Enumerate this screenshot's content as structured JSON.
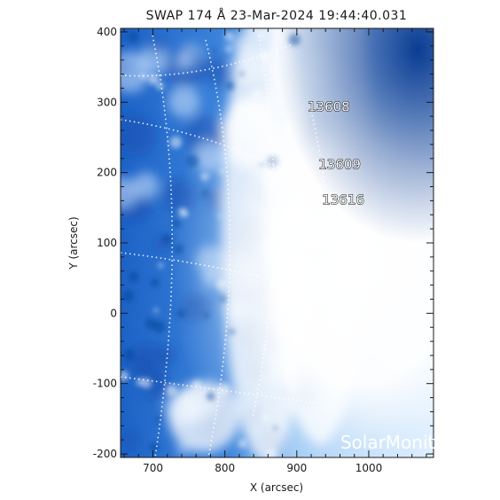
{
  "title": "SWAP 174 Å 23-Mar-2024 19:44:40.031",
  "watermark": "SolarMonitor.org",
  "colors": {
    "background": "#ffffff",
    "axis": "#1a1a1a",
    "image_dark": "#0a3f9a",
    "image_mid": "#4a8fdf",
    "image_light": "#ffffff"
  },
  "chart_data": {
    "type": "heatmap",
    "title": "SWAP 174 Å 23-Mar-2024 19:44:40.031",
    "xlabel": "X (arcsec)",
    "ylabel": "Y (arcsec)",
    "xlim": [
      655,
      1090
    ],
    "ylim": [
      -205,
      405
    ],
    "x_ticks": [
      700,
      800,
      900,
      1000
    ],
    "y_ticks": [
      -200,
      -100,
      0,
      100,
      200,
      300,
      400
    ],
    "x_tick_labels": [
      "700",
      "800",
      "900",
      "1000"
    ],
    "y_tick_labels": [
      "-200",
      "-100",
      "0",
      "100",
      "200",
      "300",
      "400"
    ],
    "grid": "heliographic dotted lines",
    "colormap": "blue-white (SWAP 174 Å)",
    "active_regions": [
      {
        "label": "13608",
        "x": 915,
        "y": 287
      },
      {
        "label": "13609",
        "x": 930,
        "y": 205
      },
      {
        "label": "13616",
        "x": 935,
        "y": 155
      }
    ]
  }
}
